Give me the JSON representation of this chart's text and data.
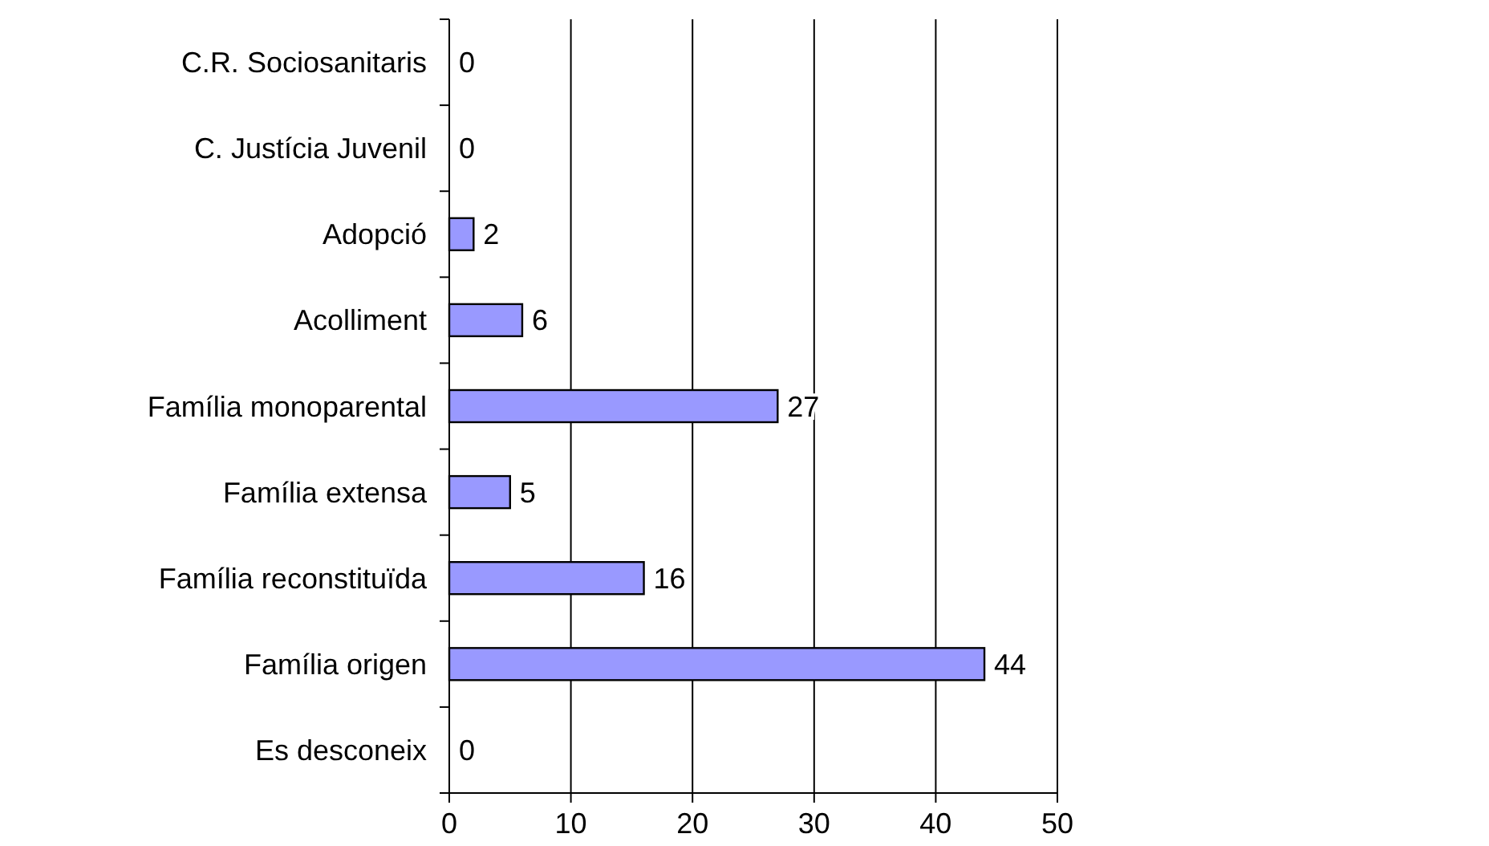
{
  "chart_data": {
    "type": "bar",
    "orientation": "horizontal",
    "categories": [
      "C.R. Sociosanitaris",
      "C. Justícia Juvenil",
      "Adopció",
      "Acolliment",
      "Família monoparental",
      "Família extensa",
      "Família reconstituïda",
      "Família origen",
      "Es desconeix"
    ],
    "values": [
      0,
      0,
      2,
      6,
      27,
      5,
      16,
      44,
      0
    ],
    "color": "#9999ff",
    "xlim": [
      0,
      50
    ],
    "xticks": [
      0,
      10,
      20,
      30,
      40,
      50
    ],
    "grid": "x",
    "data_labels": true
  }
}
